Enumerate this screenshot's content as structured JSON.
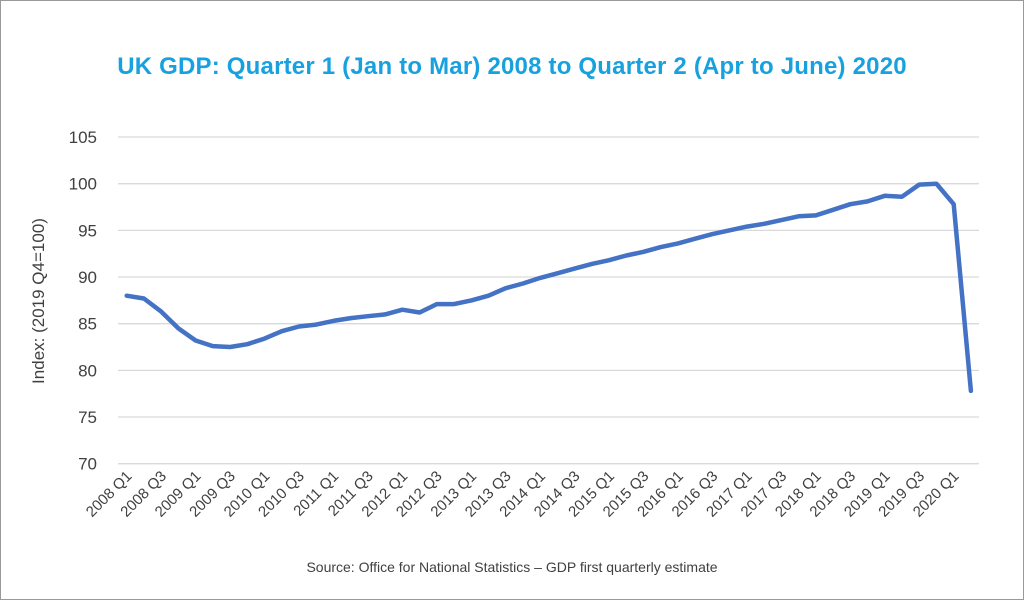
{
  "page": {
    "background": "#ffffff",
    "border_color": "#999999"
  },
  "chart_data": {
    "type": "line",
    "title": "UK GDP: Quarter 1 (Jan to Mar) 2008 to Quarter 2 (Apr to June) 2020",
    "title_color": "#18A1DF",
    "xlabel": "",
    "ylabel": "Index: (2019 Q4=100)",
    "ylim": [
      70,
      105
    ],
    "y_ticks": [
      105,
      100,
      95,
      90,
      85,
      80,
      75,
      70
    ],
    "grid": "horizontal",
    "legend": "none",
    "line_color": "#4472C4",
    "grid_color": "#D9D9D9",
    "tick_text_color": "#404040",
    "x_tick_labels": [
      "2008 Q1",
      "2008 Q3",
      "2009 Q1",
      "2009 Q3",
      "2010 Q1",
      "2010 Q3",
      "2011 Q1",
      "2011 Q3",
      "2012 Q1",
      "2012 Q3",
      "2013 Q1",
      "2013 Q3",
      "2014 Q1",
      "2014 Q3",
      "2015 Q1",
      "2015 Q3",
      "2016 Q1",
      "2016 Q3",
      "2017 Q1",
      "2017 Q3",
      "2018 Q1",
      "2018 Q3",
      "2019 Q1",
      "2019 Q3",
      "2020 Q1"
    ],
    "categories": [
      "2008 Q1",
      "2008 Q2",
      "2008 Q3",
      "2008 Q4",
      "2009 Q1",
      "2009 Q2",
      "2009 Q3",
      "2009 Q4",
      "2010 Q1",
      "2010 Q2",
      "2010 Q3",
      "2010 Q4",
      "2011 Q1",
      "2011 Q2",
      "2011 Q3",
      "2011 Q4",
      "2012 Q1",
      "2012 Q2",
      "2012 Q3",
      "2012 Q4",
      "2013 Q1",
      "2013 Q2",
      "2013 Q3",
      "2013 Q4",
      "2014 Q1",
      "2014 Q2",
      "2014 Q3",
      "2014 Q4",
      "2015 Q1",
      "2015 Q2",
      "2015 Q3",
      "2015 Q4",
      "2016 Q1",
      "2016 Q2",
      "2016 Q3",
      "2016 Q4",
      "2017 Q1",
      "2017 Q2",
      "2017 Q3",
      "2017 Q4",
      "2018 Q1",
      "2018 Q2",
      "2018 Q3",
      "2018 Q4",
      "2019 Q1",
      "2019 Q2",
      "2019 Q3",
      "2019 Q4",
      "2020 Q1",
      "2020 Q2"
    ],
    "values": [
      88.0,
      87.7,
      86.3,
      84.5,
      83.2,
      82.6,
      82.5,
      82.8,
      83.4,
      84.2,
      84.7,
      84.9,
      85.3,
      85.6,
      85.8,
      86.0,
      86.5,
      86.2,
      87.1,
      87.1,
      87.5,
      88.0,
      88.8,
      89.3,
      89.9,
      90.4,
      90.9,
      91.4,
      91.8,
      92.3,
      92.7,
      93.2,
      93.6,
      94.1,
      94.6,
      95.0,
      95.4,
      95.7,
      96.1,
      96.5,
      96.6,
      97.2,
      97.8,
      98.1,
      98.7,
      98.6,
      99.9,
      100.0,
      97.8,
      77.8
    ],
    "source": "Source: Office for National Statistics – GDP first quarterly estimate"
  }
}
